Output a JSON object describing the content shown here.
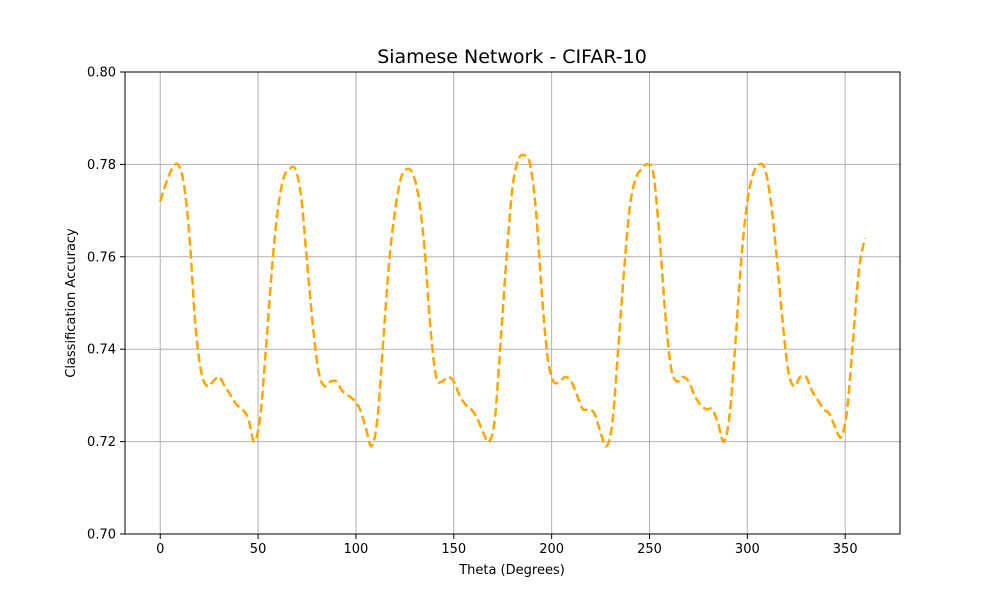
{
  "chart_data": {
    "type": "line",
    "title": "Siamese Network - CIFAR-10",
    "xlabel": "Theta (Degrees)",
    "ylabel": "Classification Accuracy",
    "xlim": [
      -18,
      378
    ],
    "ylim": [
      0.7,
      0.8
    ],
    "xticks": [
      0,
      50,
      100,
      150,
      200,
      250,
      300,
      350
    ],
    "yticks": [
      0.7,
      0.72,
      0.74,
      0.76,
      0.78,
      0.8
    ],
    "ytick_labels": [
      "0.70",
      "0.72",
      "0.74",
      "0.76",
      "0.78",
      "0.80"
    ],
    "grid": true,
    "series": [
      {
        "color": "#FFA500",
        "line_style": "dashed",
        "x": [
          0,
          3,
          6,
          9,
          12,
          15,
          18,
          21,
          24,
          27,
          30,
          33,
          36,
          39,
          42,
          45,
          48,
          51,
          54,
          57,
          60,
          63,
          66,
          69,
          72,
          75,
          78,
          81,
          84,
          87,
          90,
          93,
          96,
          99,
          102,
          105,
          108,
          111,
          114,
          117,
          120,
          123,
          126,
          129,
          132,
          135,
          138,
          141,
          144,
          147,
          150,
          153,
          156,
          159,
          162,
          165,
          168,
          171,
          174,
          177,
          180,
          183,
          186,
          189,
          192,
          195,
          198,
          201,
          204,
          207,
          210,
          213,
          216,
          219,
          222,
          225,
          228,
          231,
          234,
          237,
          240,
          243,
          246,
          249,
          252,
          255,
          258,
          261,
          264,
          267,
          270,
          273,
          276,
          279,
          282,
          285,
          288,
          291,
          294,
          297,
          300,
          303,
          306,
          309,
          312,
          315,
          318,
          321,
          324,
          327,
          330,
          333,
          336,
          339,
          342,
          345,
          348,
          351,
          354,
          357,
          360
        ],
        "y": [
          0.772,
          0.776,
          0.779,
          0.78,
          0.776,
          0.764,
          0.745,
          0.735,
          0.732,
          0.733,
          0.734,
          0.732,
          0.73,
          0.728,
          0.727,
          0.725,
          0.72,
          0.725,
          0.74,
          0.757,
          0.77,
          0.777,
          0.779,
          0.779,
          0.773,
          0.759,
          0.745,
          0.735,
          0.732,
          0.733,
          0.733,
          0.731,
          0.73,
          0.729,
          0.727,
          0.723,
          0.719,
          0.725,
          0.742,
          0.759,
          0.77,
          0.777,
          0.779,
          0.778,
          0.773,
          0.762,
          0.745,
          0.734,
          0.733,
          0.734,
          0.733,
          0.73,
          0.728,
          0.727,
          0.725,
          0.722,
          0.72,
          0.725,
          0.742,
          0.76,
          0.775,
          0.781,
          0.782,
          0.78,
          0.77,
          0.752,
          0.738,
          0.733,
          0.733,
          0.734,
          0.733,
          0.73,
          0.727,
          0.727,
          0.726,
          0.722,
          0.719,
          0.724,
          0.74,
          0.757,
          0.771,
          0.777,
          0.779,
          0.78,
          0.778,
          0.765,
          0.748,
          0.736,
          0.733,
          0.734,
          0.733,
          0.73,
          0.728,
          0.727,
          0.727,
          0.724,
          0.72,
          0.726,
          0.742,
          0.76,
          0.772,
          0.778,
          0.78,
          0.779,
          0.772,
          0.76,
          0.746,
          0.735,
          0.732,
          0.734,
          0.734,
          0.731,
          0.729,
          0.727,
          0.726,
          0.723,
          0.721,
          0.727,
          0.742,
          0.757,
          0.764
        ]
      }
    ]
  }
}
